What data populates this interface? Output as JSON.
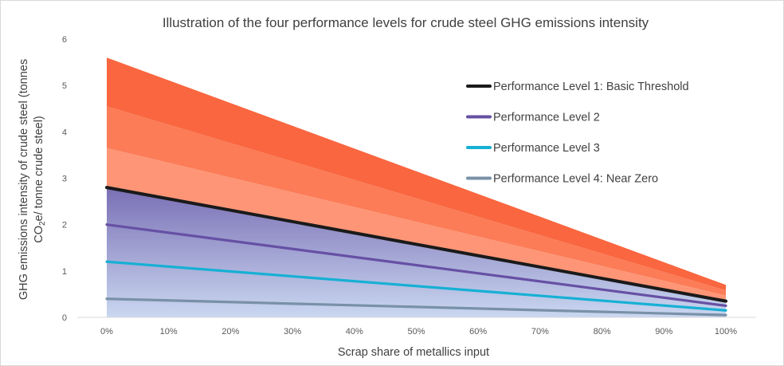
{
  "chart_data": {
    "type": "line",
    "title": "Illustration of the four performance levels for crude steel GHG emissions intensity",
    "xlabel": "Scrap share of metallics input",
    "ylabel_line1": "GHG emissions intensity of crude steel (tonnes",
    "ylabel_line2_prefix": "CO",
    "ylabel_line2_sub": "2",
    "ylabel_line2_suffix": "e/ tonne crude steel)",
    "x_ticks": [
      "0%",
      "10%",
      "20%",
      "30%",
      "40%",
      "50%",
      "60%",
      "70%",
      "80%",
      "90%",
      "100%"
    ],
    "xlim": [
      0,
      100
    ],
    "ylim": [
      0,
      6
    ],
    "y_ticks": [
      "0",
      "1",
      "2",
      "3",
      "4",
      "5",
      "6"
    ],
    "grid": false,
    "legend_position": "right",
    "series": [
      {
        "name": "Performance Level 1: Basic Threshold",
        "color": "#1a1a1a",
        "x": [
          0,
          100
        ],
        "y": [
          2.8,
          0.35
        ]
      },
      {
        "name": "Performance Level 2",
        "color": "#6650a4",
        "x": [
          0,
          100
        ],
        "y": [
          2.0,
          0.25
        ]
      },
      {
        "name": "Performance Level 3",
        "color": "#16b0d4",
        "x": [
          0,
          100
        ],
        "y": [
          1.2,
          0.15
        ]
      },
      {
        "name": "Performance Level 4: Near Zero",
        "color": "#7991a8",
        "x": [
          0,
          100
        ],
        "y": [
          0.4,
          0.05
        ]
      }
    ],
    "bands": [
      {
        "x": [
          0,
          100
        ],
        "y_low": [
          4.55,
          0.58
        ],
        "y_high": [
          5.6,
          0.7
        ],
        "color": "#f9663f"
      },
      {
        "x": [
          0,
          100
        ],
        "y_low": [
          3.65,
          0.47
        ],
        "y_high": [
          4.55,
          0.58
        ],
        "color": "#fb7c57"
      },
      {
        "x": [
          0,
          100
        ],
        "y_low": [
          2.8,
          0.35
        ],
        "y_high": [
          3.65,
          0.47
        ],
        "color": "#fd9576"
      }
    ],
    "below_threshold_gradient": {
      "top_color": "#7a6fb5",
      "bottom_color": "#c9d7f0"
    }
  }
}
